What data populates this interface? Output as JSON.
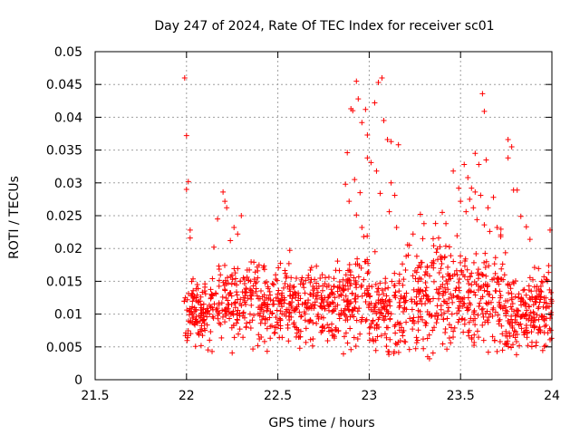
{
  "chart_data": {
    "type": "scatter",
    "title": "Day 247 of 2024, Rate Of TEC Index for receiver sc01",
    "xlabel": "GPS time / hours",
    "ylabel": "ROTI / TECUs",
    "xlim": [
      21.5,
      24
    ],
    "ylim": [
      0,
      0.05
    ],
    "xticks": [
      21.5,
      22,
      22.5,
      23,
      23.5,
      24
    ],
    "xtick_labels": [
      "21.5",
      "22",
      "22.5",
      "23",
      "23.5",
      "24"
    ],
    "yticks": [
      0,
      0.005,
      0.01,
      0.015,
      0.02,
      0.025,
      0.03,
      0.035,
      0.04,
      0.045,
      0.05
    ],
    "ytick_labels": [
      "0",
      "0.005",
      "0.01",
      "0.015",
      "0.02",
      "0.025",
      "0.03",
      "0.035",
      "0.04",
      "0.045",
      "0.05"
    ],
    "grid": true,
    "marker": "+",
    "color": "#ff0000",
    "series": [
      {
        "name": "sc01",
        "points": [
          [
            21.99,
            0.046
          ],
          [
            22.0,
            0.0372
          ],
          [
            22.0,
            0.029
          ],
          [
            22.01,
            0.0302
          ],
          [
            22.02,
            0.0228
          ],
          [
            22.02,
            0.0216
          ],
          [
            22.2,
            0.0286
          ],
          [
            22.21,
            0.0272
          ],
          [
            22.22,
            0.0262
          ],
          [
            22.17,
            0.0245
          ],
          [
            22.3,
            0.025
          ],
          [
            22.26,
            0.0232
          ],
          [
            22.28,
            0.0222
          ],
          [
            22.24,
            0.0212
          ],
          [
            22.15,
            0.0202
          ],
          [
            22.88,
            0.0346
          ],
          [
            22.9,
            0.0413
          ],
          [
            22.91,
            0.041
          ],
          [
            22.93,
            0.0455
          ],
          [
            22.94,
            0.0428
          ],
          [
            22.96,
            0.0392
          ],
          [
            22.98,
            0.0412
          ],
          [
            22.99,
            0.0373
          ],
          [
            23.03,
            0.0422
          ],
          [
            23.05,
            0.0453
          ],
          [
            23.07,
            0.046
          ],
          [
            23.08,
            0.0395
          ],
          [
            23.1,
            0.0366
          ],
          [
            23.12,
            0.0363
          ],
          [
            23.16,
            0.0358
          ],
          [
            22.92,
            0.0305
          ],
          [
            22.95,
            0.0285
          ],
          [
            22.99,
            0.0338
          ],
          [
            23.01,
            0.0331
          ],
          [
            23.04,
            0.0318
          ],
          [
            23.06,
            0.0284
          ],
          [
            23.12,
            0.03
          ],
          [
            23.14,
            0.0281
          ],
          [
            23.11,
            0.0256
          ],
          [
            23.15,
            0.0232
          ],
          [
            22.87,
            0.0298
          ],
          [
            22.89,
            0.0272
          ],
          [
            22.93,
            0.0251
          ],
          [
            22.96,
            0.0232
          ],
          [
            22.97,
            0.0218
          ],
          [
            23.62,
            0.0436
          ],
          [
            23.63,
            0.0409
          ],
          [
            23.58,
            0.0345
          ],
          [
            23.6,
            0.0328
          ],
          [
            23.64,
            0.0335
          ],
          [
            23.76,
            0.0366
          ],
          [
            23.78,
            0.0355
          ],
          [
            23.76,
            0.0338
          ],
          [
            23.46,
            0.0318
          ],
          [
            23.49,
            0.0292
          ],
          [
            23.52,
            0.0328
          ],
          [
            23.54,
            0.0308
          ],
          [
            23.56,
            0.0292
          ],
          [
            23.58,
            0.0286
          ],
          [
            23.55,
            0.0275
          ],
          [
            23.57,
            0.0262
          ],
          [
            23.61,
            0.0281
          ],
          [
            23.65,
            0.0262
          ],
          [
            23.68,
            0.0278
          ],
          [
            23.79,
            0.0289
          ],
          [
            23.81,
            0.0289
          ],
          [
            23.83,
            0.0249
          ],
          [
            23.86,
            0.0233
          ],
          [
            23.88,
            0.0214
          ],
          [
            23.99,
            0.0228
          ],
          [
            23.4,
            0.0255
          ],
          [
            23.42,
            0.0238
          ],
          [
            23.38,
            0.0216
          ],
          [
            23.7,
            0.0232
          ],
          [
            23.72,
            0.0218
          ],
          [
            23.5,
            0.0272
          ],
          [
            23.53,
            0.0256
          ],
          [
            23.59,
            0.0244
          ],
          [
            23.63,
            0.0236
          ],
          [
            23.66,
            0.0226
          ],
          [
            23.28,
            0.0252
          ],
          [
            23.3,
            0.0238
          ],
          [
            23.24,
            0.0222
          ],
          [
            23.22,
            0.0205
          ],
          [
            23.35,
            0.0215
          ],
          [
            23.32,
            0.0035
          ],
          [
            23.33,
            0.0032
          ],
          [
            22.14,
            0.0043
          ],
          [
            22.62,
            0.0048
          ],
          [
            22.39,
            0.0052
          ],
          [
            23.7,
            0.0043
          ],
          [
            23.73,
            0.0045
          ],
          [
            22.08,
            0.0052
          ],
          [
            22.25,
            0.0041
          ],
          [
            23.99,
            0.0061
          ]
        ]
      }
    ]
  }
}
